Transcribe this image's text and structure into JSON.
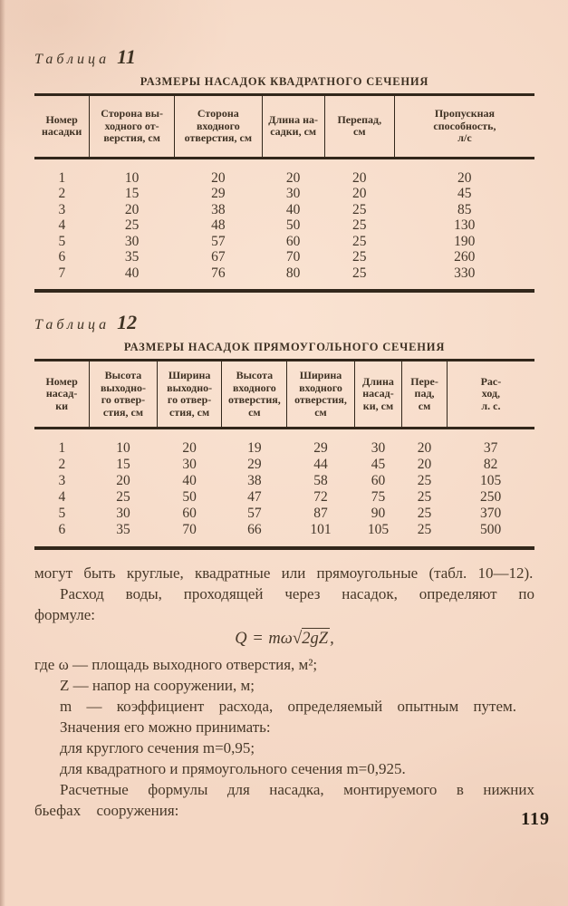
{
  "colors": {
    "paper": "#f4d7c4",
    "ink": "#473828",
    "rule": "#32271b"
  },
  "page": {
    "number": "119"
  },
  "tables": {
    "table11": {
      "caption_word": "Таблица",
      "caption_number": "11",
      "title": "РАЗМЕРЫ НАСАДОК КВАДРАТНОГО СЕЧЕНИЯ",
      "headers": [
        "Номер\nнасадки",
        "Сторона вы-\nходного от-\nверстия, см",
        "Сторона\nвходного\nотверстия, см",
        "Длина на-\nсадки, см",
        "Перепад,\nсм",
        "Пропускная\nспособность,\nл/с"
      ],
      "rows": [
        [
          "1",
          "10",
          "20",
          "20",
          "20",
          "20"
        ],
        [
          "2",
          "15",
          "29",
          "30",
          "20",
          "45"
        ],
        [
          "3",
          "20",
          "38",
          "40",
          "25",
          "85"
        ],
        [
          "4",
          "25",
          "48",
          "50",
          "25",
          "130"
        ],
        [
          "5",
          "30",
          "57",
          "60",
          "25",
          "190"
        ],
        [
          "6",
          "35",
          "67",
          "70",
          "25",
          "260"
        ],
        [
          "7",
          "40",
          "76",
          "80",
          "25",
          "330"
        ]
      ]
    },
    "table12": {
      "caption_word": "Таблица",
      "caption_number": "12",
      "title": "РАЗМЕРЫ НАСАДОК ПРЯМОУГОЛЬНОГО СЕЧЕНИЯ",
      "headers": [
        "Номер\nнасад-\nки",
        "Высота\nвыходно-\nго отвер-\nстия, см",
        "Ширина\nвыходно-\nго отвер-\nстия, см",
        "Высота\nвходного\nотверстия,\nсм",
        "Ширина\nвходного\nотверстия,\nсм",
        "Длина\nнасад-\nки, см",
        "Пере-\nпад,\nсм",
        "Рас-\nход,\nл. с."
      ],
      "rows": [
        [
          "1",
          "10",
          "20",
          "19",
          "29",
          "30",
          "20",
          "37"
        ],
        [
          "2",
          "15",
          "30",
          "29",
          "44",
          "45",
          "20",
          "82"
        ],
        [
          "3",
          "20",
          "40",
          "38",
          "58",
          "60",
          "25",
          "105"
        ],
        [
          "4",
          "25",
          "50",
          "47",
          "72",
          "75",
          "25",
          "250"
        ],
        [
          "5",
          "30",
          "60",
          "57",
          "87",
          "90",
          "25",
          "370"
        ],
        [
          "6",
          "35",
          "70",
          "66",
          "101",
          "105",
          "25",
          "500"
        ]
      ]
    }
  },
  "body": {
    "para1": "могут быть круглые, квадратные или прямоугольные (табл. 10—12).",
    "para2": "Расход воды, проходящей через насадок, определяют по формуле:",
    "formula": {
      "lhs": "Q = mω",
      "radical": "√",
      "radicand": "2gZ",
      "tail": ","
    },
    "where1": "где ω — площадь выходного отверстия, м²;",
    "where2": "Z — напор на сооружении, м;",
    "where3": "m — коэффициент расхода, определяемый опытным путем.",
    "para3": "Значения его можно принимать:",
    "para4": "для круглого сечения m=0,95;",
    "para5": "для квадратного и прямоугольного сечения m=0,925.",
    "para6": "Расчетные формулы для насадка, монтируемого в нижних бьефах сооружения:"
  }
}
